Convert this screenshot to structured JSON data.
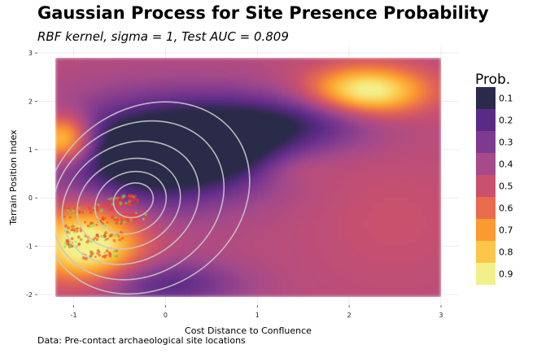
{
  "chart_data": {
    "type": "heatmap",
    "title": "Gaussian Process for Site Presence Probability",
    "subtitle": "RBF kernel, sigma = 1, Test AUC = 0.809",
    "caption": "Data: Pre-contact archaeological site locations",
    "xlabel": "Cost Distance to Confluence",
    "ylabel": "Terrain Position Index",
    "xlim": [
      -1.2,
      3.0
    ],
    "ylim": [
      -2.05,
      2.9
    ],
    "xticks": [
      -1,
      0,
      1,
      2,
      3
    ],
    "yticks": [
      -2,
      -1,
      0,
      1,
      2,
      3
    ],
    "grid": true,
    "legend": {
      "title": "Prob.",
      "placement": "right",
      "labels": [
        "0.1",
        "0.2",
        "0.3",
        "0.4",
        "0.5",
        "0.6",
        "0.7",
        "0.8",
        "0.9"
      ],
      "colors": [
        "#2c2a4a",
        "#5b2a86",
        "#7e3a8e",
        "#a64a8a",
        "#c9516d",
        "#e86b4e",
        "#fb9a2e",
        "#fdc549",
        "#f3f08a"
      ]
    },
    "surface": {
      "baseline": 0.45,
      "components": [
        {
          "x": -0.2,
          "y": 0.9,
          "sx": 0.7,
          "sy": 0.75,
          "amp": -0.5
        },
        {
          "x": 0.7,
          "y": 1.2,
          "sx": 0.55,
          "sy": 0.6,
          "amp": -0.35
        },
        {
          "x": 0.0,
          "y": -1.8,
          "sx": 0.55,
          "sy": 0.35,
          "amp": -0.25
        },
        {
          "x": 1.6,
          "y": 1.6,
          "sx": 0.55,
          "sy": 0.4,
          "amp": -0.22
        },
        {
          "x": -0.85,
          "y": -0.95,
          "sx": 0.4,
          "sy": 0.55,
          "amp": 0.55
        },
        {
          "x": -1.1,
          "y": 1.2,
          "sx": 0.22,
          "sy": 0.35,
          "amp": 0.5
        },
        {
          "x": 2.2,
          "y": 2.2,
          "sx": 0.45,
          "sy": 0.35,
          "amp": 0.5
        },
        {
          "x": 1.4,
          "y": 0.6,
          "sx": 0.3,
          "sy": 0.25,
          "amp": 0.08
        },
        {
          "x": 2.5,
          "y": -0.5,
          "sx": 0.6,
          "sy": 0.9,
          "amp": 0.05
        }
      ]
    },
    "density_contours": {
      "color": "#c8c8c8",
      "levels": [
        {
          "cx": -0.35,
          "cy": -0.05,
          "rx": 0.22,
          "ry": 0.35,
          "rot": -20
        },
        {
          "cx": -0.38,
          "cy": -0.1,
          "rx": 0.4,
          "ry": 0.62,
          "rot": -25
        },
        {
          "cx": -0.4,
          "cy": -0.12,
          "rx": 0.58,
          "ry": 0.9,
          "rot": -25
        },
        {
          "cx": -0.38,
          "cy": -0.1,
          "rx": 0.78,
          "ry": 1.2,
          "rot": -30
        },
        {
          "cx": -0.3,
          "cy": -0.05,
          "rx": 0.98,
          "ry": 1.55,
          "rot": -32
        },
        {
          "cx": -0.2,
          "cy": 0.0,
          "rx": 1.18,
          "ry": 1.85,
          "rot": -35
        }
      ]
    },
    "site_points": {
      "red": "#ff3a1a",
      "green": "#6fe04a",
      "bands": [
        {
          "x0": -1.1,
          "x1": -0.3,
          "y": -0.3,
          "slope": 0.35,
          "spread": 0.12,
          "n": 90
        },
        {
          "x0": -1.1,
          "x1": -0.2,
          "y": -0.65,
          "slope": 0.35,
          "spread": 0.1,
          "n": 80
        },
        {
          "x0": -1.1,
          "x1": -0.45,
          "y": -0.95,
          "slope": 0.3,
          "spread": 0.1,
          "n": 60
        },
        {
          "x0": -0.9,
          "x1": -0.5,
          "y": -1.2,
          "slope": 0.2,
          "spread": 0.08,
          "n": 30
        }
      ]
    }
  }
}
